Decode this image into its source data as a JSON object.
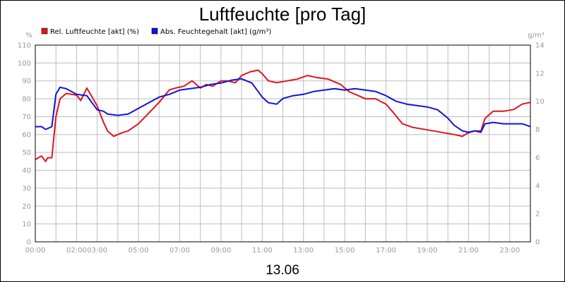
{
  "chart_data": {
    "type": "line",
    "title": "Luftfeuchte [pro Tag]",
    "subtitle": "13.06",
    "ylabel_left_unit": "%",
    "ylabel_right_unit": "g/m³",
    "ylim_left": [
      0,
      110
    ],
    "ylim_right": [
      0,
      14
    ],
    "yticks_left": [
      "0",
      "10",
      "20",
      "30",
      "40",
      "50",
      "60",
      "70",
      "80",
      "90",
      "100",
      "110"
    ],
    "yticks_right": [
      "0",
      "2",
      "4",
      "6",
      "8",
      "10",
      "12",
      "14"
    ],
    "xlim_hours": [
      0,
      24
    ],
    "xticks": [
      {
        "h": 0,
        "label": "00:00"
      },
      {
        "h": 2,
        "label": "02:00"
      },
      {
        "h": 3,
        "label": "03:00"
      },
      {
        "h": 5,
        "label": "05:00"
      },
      {
        "h": 7,
        "label": "07:00"
      },
      {
        "h": 9,
        "label": "09:00"
      },
      {
        "h": 11,
        "label": "11:00"
      },
      {
        "h": 13,
        "label": "13:00"
      },
      {
        "h": 15,
        "label": "15:00"
      },
      {
        "h": 17,
        "label": "17:00"
      },
      {
        "h": 19,
        "label": "19:00"
      },
      {
        "h": 21,
        "label": "21:00"
      },
      {
        "h": 23,
        "label": "23:00"
      }
    ],
    "grid": true,
    "legend_position": "top-left",
    "series": [
      {
        "name": "Rel. Luftfeuchte [akt] (%)",
        "axis": "left",
        "color": "#e0141c",
        "x": [
          0,
          0.3,
          0.5,
          0.6,
          0.8,
          1.0,
          1.2,
          1.5,
          2.0,
          2.2,
          2.5,
          2.7,
          3.0,
          3.3,
          3.5,
          3.8,
          4.2,
          4.5,
          5.0,
          5.5,
          6.0,
          6.5,
          6.8,
          7.2,
          7.6,
          7.8,
          8.0,
          8.3,
          8.6,
          9.0,
          9.3,
          9.7,
          10.0,
          10.4,
          10.8,
          11.0,
          11.3,
          11.7,
          12.2,
          12.7,
          13.2,
          13.6,
          14.2,
          14.8,
          15.2,
          15.6,
          16.0,
          16.5,
          17.0,
          17.3,
          17.8,
          18.3,
          18.8,
          19.3,
          19.8,
          20.3,
          20.7,
          21.0,
          21.3,
          21.6,
          21.8,
          22.2,
          22.7,
          23.2,
          23.6,
          24.0
        ],
        "values": [
          46,
          48,
          45,
          47,
          47,
          70,
          80,
          83,
          82,
          79,
          86,
          82,
          76,
          67,
          62,
          59,
          61,
          62,
          66,
          72,
          78,
          85,
          86,
          87,
          90,
          88,
          86,
          88,
          87,
          90,
          90,
          89,
          93,
          95,
          96,
          94,
          90,
          89,
          90,
          91,
          93,
          92,
          91,
          88,
          84,
          82,
          80,
          80,
          77,
          73,
          66,
          64,
          63,
          62,
          61,
          60,
          59,
          61,
          62,
          62,
          69,
          73,
          73,
          74,
          77,
          78
        ]
      },
      {
        "name": "Abs. Feuchtegehalt [akt] (g/m³)",
        "axis": "right",
        "color": "#0f14d8",
        "x": [
          0,
          0.3,
          0.5,
          0.8,
          1.0,
          1.2,
          1.5,
          2.0,
          2.5,
          3.0,
          3.3,
          3.5,
          4.0,
          4.5,
          5.0,
          5.5,
          6.0,
          6.5,
          7.0,
          7.5,
          8.0,
          8.5,
          9.0,
          9.5,
          10.0,
          10.5,
          11.0,
          11.3,
          11.7,
          12.0,
          12.5,
          13.0,
          13.5,
          14.0,
          14.5,
          15.0,
          15.5,
          16.0,
          16.5,
          17.0,
          17.5,
          18.0,
          18.5,
          19.0,
          19.5,
          20.0,
          20.3,
          20.7,
          21.0,
          21.3,
          21.6,
          21.8,
          22.2,
          22.7,
          23.2,
          23.6,
          24.0
        ],
        "values": [
          8.2,
          8.2,
          8.0,
          8.2,
          10.5,
          11.0,
          10.9,
          10.5,
          10.4,
          9.4,
          9.3,
          9.1,
          9.0,
          9.1,
          9.5,
          9.9,
          10.3,
          10.5,
          10.8,
          10.9,
          11.0,
          11.2,
          11.3,
          11.5,
          11.6,
          11.3,
          10.3,
          9.9,
          9.8,
          10.2,
          10.4,
          10.5,
          10.7,
          10.8,
          10.9,
          10.8,
          10.9,
          10.8,
          10.7,
          10.4,
          10.0,
          9.8,
          9.7,
          9.6,
          9.4,
          8.8,
          8.3,
          7.9,
          7.8,
          7.9,
          7.8,
          8.4,
          8.5,
          8.4,
          8.4,
          8.4,
          8.2
        ]
      }
    ]
  }
}
